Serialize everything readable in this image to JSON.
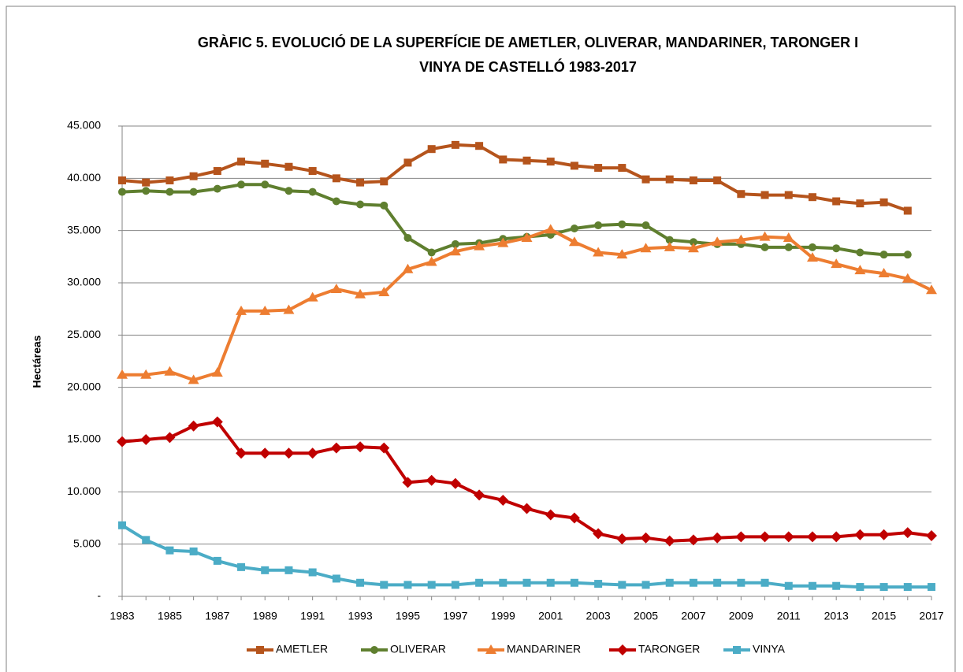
{
  "chart_data": {
    "type": "line",
    "title": [
      "GRÀFIC 5. EVOLUCIÓ DE LA SUPERFÍCIE DE AMETLER, OLIVERAR, MANDARINER, TARONGER I",
      "VINYA DE CASTELLÓ 1983-2017"
    ],
    "y_label": "Hectáreas",
    "categories": [
      "1983",
      null,
      "1985",
      null,
      "1987",
      null,
      "1989",
      null,
      "1991",
      null,
      "1993",
      null,
      "1995",
      null,
      "1997",
      null,
      "1999",
      null,
      "2001",
      null,
      "2003",
      null,
      "2005",
      null,
      "2007",
      null,
      "2009",
      null,
      "2011",
      null,
      "2013",
      null,
      "2015",
      null,
      "2017"
    ],
    "ylim": [
      0,
      45000
    ],
    "yticks": [
      {
        "value": 0,
        "label": "-"
      },
      {
        "value": 5000,
        "label": "5.000"
      },
      {
        "value": 10000,
        "label": "10.000"
      },
      {
        "value": 15000,
        "label": "15.000"
      },
      {
        "value": 20000,
        "label": "20.000"
      },
      {
        "value": 25000,
        "label": "25.000"
      },
      {
        "value": 30000,
        "label": "30.000"
      },
      {
        "value": 35000,
        "label": "35.000"
      },
      {
        "value": 40000,
        "label": "40.000"
      },
      {
        "value": 45000,
        "label": "45.000"
      }
    ],
    "grid": true,
    "legend": "bottom",
    "series": [
      {
        "name": "AMETLER",
        "color": "#b5541c",
        "marker": "square",
        "values": [
          39800,
          39600,
          39800,
          40200,
          40700,
          41600,
          41400,
          41100,
          40700,
          40000,
          39600,
          39700,
          41500,
          42800,
          43200,
          43100,
          41800,
          41700,
          41600,
          41200,
          41000,
          41000,
          39900,
          39900,
          39800,
          39800,
          38500,
          38400,
          38400,
          38200,
          37800,
          37600,
          37700,
          36900,
          null
        ]
      },
      {
        "name": "OLIVERAR",
        "color": "#5f7f2f",
        "marker": "circle",
        "values": [
          38700,
          38800,
          38700,
          38700,
          39000,
          39400,
          39400,
          38800,
          38700,
          37800,
          37500,
          37400,
          34300,
          32900,
          33700,
          33800,
          34200,
          34400,
          34600,
          35200,
          35500,
          35600,
          35500,
          34100,
          33900,
          33700,
          33700,
          33400,
          33400,
          33400,
          33300,
          32900,
          32700,
          32700,
          null
        ]
      },
      {
        "name": "MANDARINER",
        "color": "#ed7d31",
        "marker": "triangle",
        "values": [
          21200,
          21200,
          21500,
          20700,
          21400,
          27300,
          27300,
          27400,
          28600,
          29400,
          28900,
          29100,
          31300,
          32000,
          33000,
          33500,
          33800,
          34300,
          35100,
          33900,
          32900,
          32700,
          33300,
          33400,
          33300,
          33900,
          34100,
          34400,
          34300,
          32400,
          31800,
          31200,
          30900,
          30400,
          29300
        ]
      },
      {
        "name": "TARONGER",
        "color": "#c00000",
        "marker": "diamond",
        "values": [
          14800,
          15000,
          15200,
          16300,
          16700,
          13700,
          13700,
          13700,
          13700,
          14200,
          14300,
          14200,
          10900,
          11100,
          10800,
          9700,
          9200,
          8400,
          7800,
          7500,
          6000,
          5500,
          5600,
          5300,
          5400,
          5600,
          5700,
          5700,
          5700,
          5700,
          5700,
          5900,
          5900,
          6100,
          5800
        ]
      },
      {
        "name": "VINYA",
        "color": "#4bacc6",
        "marker": "square",
        "values": [
          6800,
          5400,
          4400,
          4300,
          3400,
          2800,
          2500,
          2500,
          2300,
          1700,
          1300,
          1100,
          1100,
          1100,
          1100,
          1300,
          1300,
          1300,
          1300,
          1300,
          1200,
          1100,
          1100,
          1300,
          1300,
          1300,
          1300,
          1300,
          1000,
          1000,
          1000,
          900,
          900,
          900,
          900
        ]
      }
    ]
  }
}
